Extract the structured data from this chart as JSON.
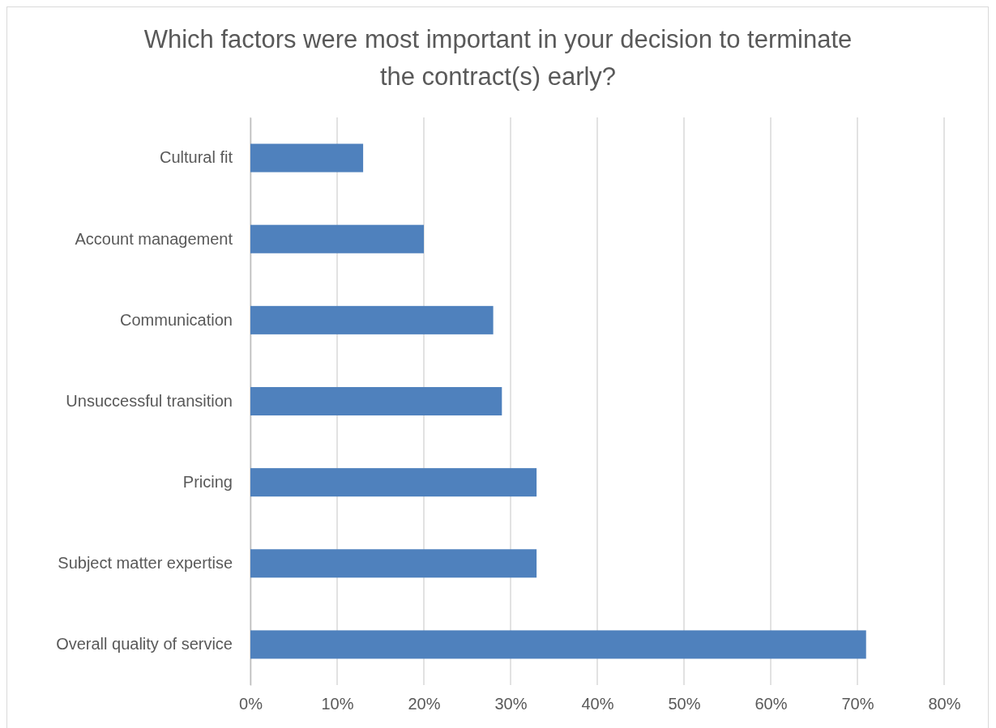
{
  "chart_data": {
    "type": "bar",
    "orientation": "horizontal",
    "title": "Which factors were most important in your decision to terminate the contract(s) early?",
    "categories": [
      "Cultural fit",
      "Account management",
      "Communication",
      "Unsuccessful transition",
      "Pricing",
      "Subject matter expertise",
      "Overall quality of service"
    ],
    "values": [
      13,
      20,
      28,
      29,
      33,
      33,
      71
    ],
    "color": "#4f81bd",
    "xlim": [
      0,
      80
    ],
    "xticks": [
      {
        "value": 0,
        "label": "0%"
      },
      {
        "value": 10,
        "label": "10%"
      },
      {
        "value": 20,
        "label": "20%"
      },
      {
        "value": 30,
        "label": "30%"
      },
      {
        "value": 40,
        "label": "40%"
      },
      {
        "value": 50,
        "label": "50%"
      },
      {
        "value": 60,
        "label": "60%"
      },
      {
        "value": 70,
        "label": "70%"
      },
      {
        "value": 80,
        "label": "80%"
      }
    ],
    "grid": "x"
  }
}
